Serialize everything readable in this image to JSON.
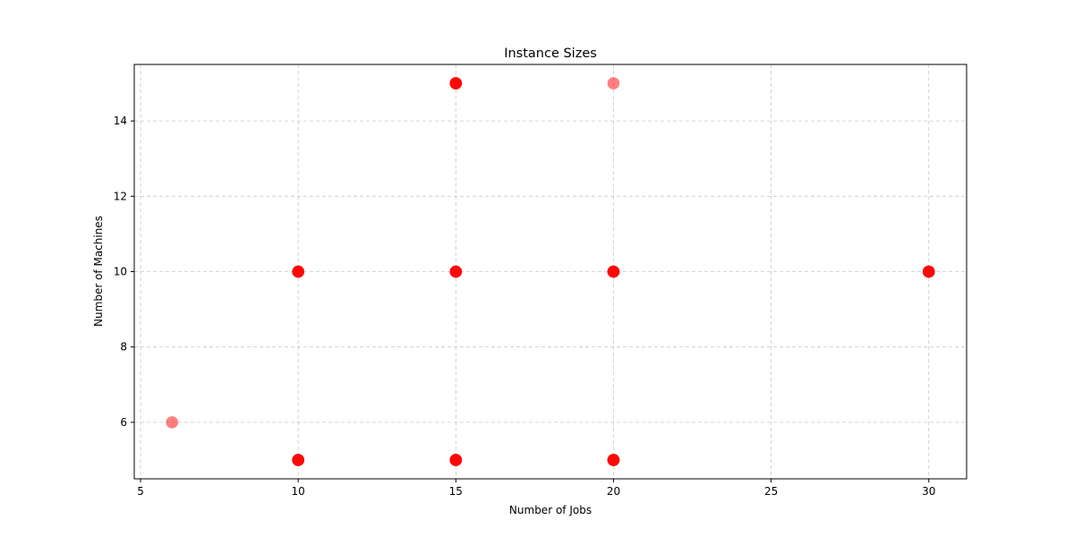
{
  "chart_data": {
    "type": "scatter",
    "title": "Instance Sizes",
    "xlabel": "Number of Jobs",
    "ylabel": "Number of Machines",
    "xlim": [
      4.8,
      31.2
    ],
    "ylim": [
      4.5,
      15.5
    ],
    "xticks": [
      5,
      10,
      15,
      20,
      25,
      30
    ],
    "yticks": [
      6,
      8,
      10,
      12,
      14
    ],
    "grid": true,
    "marker_color": "#ff0000",
    "points": [
      {
        "x": 6,
        "y": 6,
        "count": 1
      },
      {
        "x": 10,
        "y": 5,
        "count": 5
      },
      {
        "x": 10,
        "y": 10,
        "count": 5
      },
      {
        "x": 15,
        "y": 5,
        "count": 5
      },
      {
        "x": 15,
        "y": 10,
        "count": 5
      },
      {
        "x": 15,
        "y": 15,
        "count": 5
      },
      {
        "x": 20,
        "y": 5,
        "count": 5
      },
      {
        "x": 20,
        "y": 10,
        "count": 5
      },
      {
        "x": 20,
        "y": 15,
        "count": 1
      },
      {
        "x": 30,
        "y": 10,
        "count": 5
      }
    ]
  }
}
